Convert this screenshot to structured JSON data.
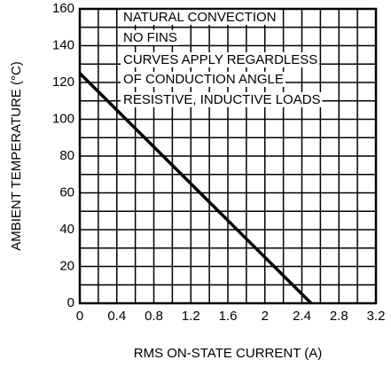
{
  "chart_data": {
    "type": "line",
    "xlabel": "RMS ON-STATE CURRENT  (A)",
    "ylabel": "AMBIENT TEMPERATURE  (°C)",
    "annotations": [
      "NATURAL CONVECTION",
      "NO FINS",
      "CURVES APPLY REGARDLESS",
      "OF CONDUCTION ANGLE",
      "RESISTIVE, INDUCTIVE LOADS"
    ],
    "x": [
      0,
      2.5
    ],
    "series": [
      {
        "color": "#000000",
        "values": [
          125,
          0
        ]
      }
    ],
    "xlim": [
      0,
      3.2
    ],
    "xticks": [
      0,
      0.4,
      0.8,
      1.2,
      1.6,
      2.0,
      2.4,
      2.8,
      3.2
    ],
    "ylim": [
      0,
      160
    ],
    "yticks": [
      0,
      20,
      40,
      60,
      80,
      100,
      120,
      140,
      160
    ],
    "grid": true,
    "minor_grid": 2
  }
}
